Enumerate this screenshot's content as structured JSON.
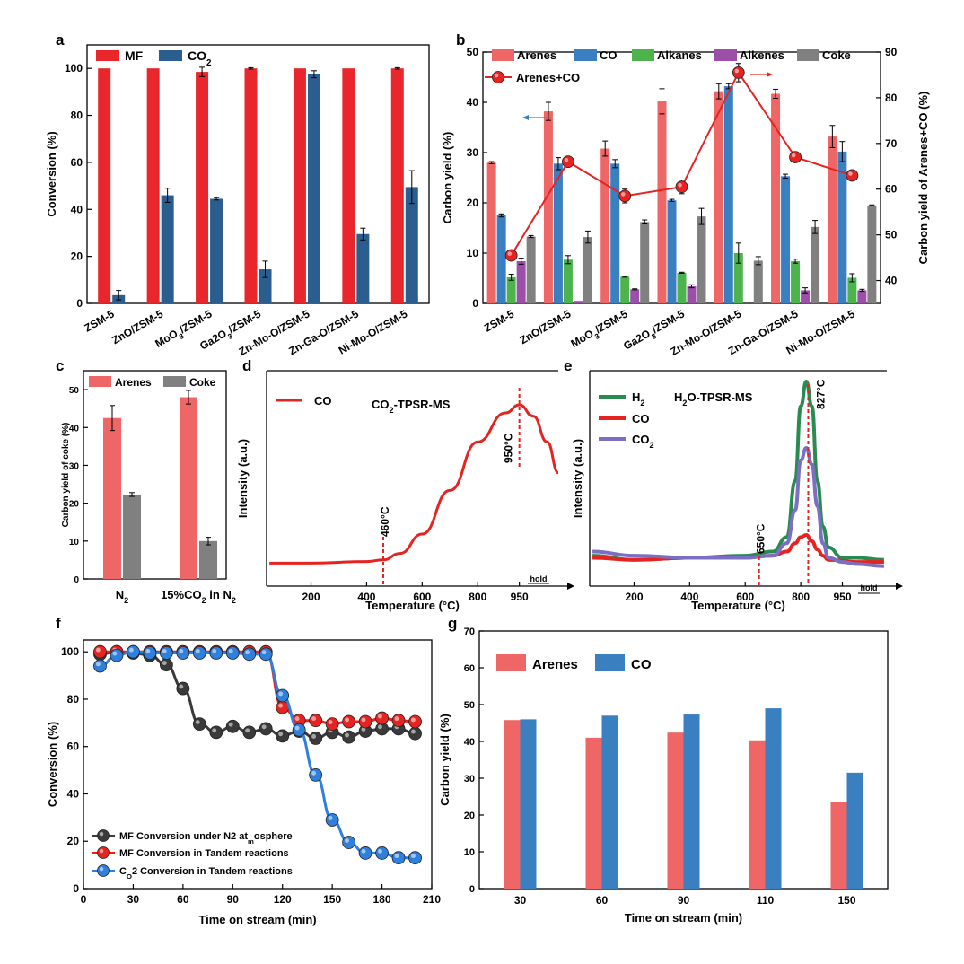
{
  "colors": {
    "mf_red": "#e8262b",
    "co2_blue": "#2b5d8e",
    "arenes": "#ee6666",
    "co": "#3a7fc0",
    "alkanes": "#4db34d",
    "alkenes": "#9b4fa8",
    "coke": "#808080",
    "series_red": "#e52421",
    "h2_green": "#2a8b51",
    "co2_purple": "#7b6fc3",
    "dark_gray": "#3a3a3a",
    "blue_line": "#2f7fdc"
  },
  "catalysts": [
    "ZSM-5",
    "ZnO/ZSM-5",
    "MoO3/ZSM-5",
    "Ga2O3/ZSM-5",
    "Zn-Mo-O/ZSM-5",
    "Zn-Ga-O/ZSM-5",
    "Ni-Mo-O/ZSM-5"
  ],
  "chart_data": [
    {
      "panel": "a",
      "type": "bar",
      "categories": [
        "ZSM-5",
        "ZnO/ZSM-5",
        "MoO3/ZSM-5",
        "Ga2O3/ZSM-5",
        "Zn-Mo-O/ZSM-5",
        "Zn-Ga-O/ZSM-5",
        "Ni-Mo-O/ZSM-5"
      ],
      "series": [
        {
          "name": "MF",
          "values": [
            100,
            100,
            98.5,
            100,
            100,
            100,
            100
          ],
          "errors": [
            0,
            0,
            2,
            0.3,
            0,
            0,
            0.3
          ]
        },
        {
          "name": "CO2",
          "values": [
            3.5,
            46,
            44.5,
            14.5,
            97.5,
            29.5,
            49.5
          ],
          "errors": [
            2,
            3,
            0.5,
            3.5,
            1.5,
            2.5,
            7
          ]
        }
      ],
      "ylabel": "Conversion (%)",
      "ylim": [
        0,
        110
      ],
      "yticks": [
        0,
        20,
        40,
        60,
        80,
        100
      ]
    },
    {
      "panel": "b",
      "type": "bar",
      "categories": [
        "ZSM-5",
        "ZnO/ZSM-5",
        "MoO3/ZSM-5",
        "Ga2O3/ZSM-5",
        "Zn-Mo-O/ZSM-5",
        "Zn-Ga-O/ZSM-5",
        "Ni-Mo-O/ZSM-5"
      ],
      "series": [
        {
          "name": "Arenes",
          "values": [
            28,
            38.2,
            30.8,
            40.2,
            42.2,
            41.7,
            33.2
          ],
          "errors": [
            0.2,
            1.8,
            1.5,
            2.5,
            1.5,
            0.9,
            2.2
          ]
        },
        {
          "name": "CO",
          "values": [
            17.5,
            27.8,
            27.8,
            20.5,
            43.2,
            25.3,
            30.2
          ],
          "errors": [
            0.3,
            1.2,
            0.8,
            0.2,
            0.5,
            0.4,
            2
          ]
        },
        {
          "name": "Alkanes",
          "values": [
            5.2,
            8.7,
            5.3,
            6.1,
            10,
            8.4,
            5.1
          ],
          "errors": [
            0.6,
            0.8,
            0.1,
            0.1,
            2,
            0.4,
            0.8
          ]
        },
        {
          "name": "Alkenes",
          "values": [
            8.4,
            0.5,
            2.8,
            3.4,
            0,
            2.6,
            2.6
          ],
          "errors": [
            0.6,
            0,
            0.1,
            0.3,
            0,
            0.5,
            0.2
          ]
        },
        {
          "name": "Coke",
          "values": [
            13.3,
            13.2,
            16.2,
            17.3,
            8.5,
            15.2,
            19.5
          ],
          "errors": [
            0.2,
            1.2,
            0.4,
            1.6,
            0.8,
            1.3,
            0.1
          ]
        }
      ],
      "line_series": {
        "name": "Arenes+CO",
        "axis": "right",
        "values": [
          45.5,
          66,
          58.5,
          60.5,
          85.5,
          67,
          63
        ],
        "errors": [
          0.5,
          0.5,
          1.5,
          1.5,
          2,
          0.5,
          0.5
        ]
      },
      "ylabel": "Carbon yield (%)",
      "ylim": [
        0,
        50
      ],
      "yticks": [
        0,
        10,
        20,
        30,
        40,
        50
      ],
      "ylabel_right": "Carbon yield of Arenes+CO (%)",
      "ylim_right": [
        35,
        90
      ],
      "yticks_right": [
        40,
        50,
        60,
        70,
        80,
        90
      ]
    },
    {
      "panel": "c",
      "type": "bar",
      "categories": [
        "N2",
        "15%CO2 in N2"
      ],
      "series": [
        {
          "name": "Arenes",
          "values": [
            42.5,
            48
          ],
          "errors": [
            3.3,
            1.8
          ]
        },
        {
          "name": "Coke",
          "values": [
            22.3,
            10
          ],
          "errors": [
            0.5,
            1
          ]
        }
      ],
      "ylabel": "Carbon yield of coke (%)",
      "ylim": [
        0,
        55
      ],
      "yticks": [
        0,
        10,
        20,
        30,
        40,
        50
      ]
    },
    {
      "panel": "d",
      "type": "line",
      "title": "CO2-TPSR-MS",
      "series": [
        {
          "name": "CO",
          "x": [
            50,
            200,
            400,
            460,
            520,
            600,
            700,
            800,
            900,
            950,
            1000,
            1050,
            1090
          ],
          "y": [
            0.02,
            0.02,
            0.03,
            0.04,
            0.08,
            0.2,
            0.47,
            0.77,
            0.95,
            1.0,
            0.93,
            0.77,
            0.58
          ]
        }
      ],
      "annotations": [
        "460°C",
        "950°C"
      ],
      "xlabel": "Temperature (°C)",
      "ylabel": "Intensity (a.u.)",
      "xticks": [
        200,
        400,
        600,
        800,
        950
      ],
      "xlim": [
        40,
        1090
      ],
      "extra_tick": "hold"
    },
    {
      "panel": "e",
      "type": "line",
      "title": "H2O-TPSR-MS",
      "series": [
        {
          "name": "H2",
          "x": [
            50,
            200,
            400,
            600,
            700,
            750,
            780,
            800,
            820,
            840,
            860,
            880,
            900,
            950,
            1000,
            1100
          ],
          "y": [
            0.06,
            0.04,
            0.05,
            0.06,
            0.08,
            0.15,
            0.42,
            0.78,
            0.9,
            0.78,
            0.42,
            0.2,
            0.1,
            0.05,
            0.05,
            0.04
          ]
        },
        {
          "name": "CO",
          "x": [
            50,
            200,
            400,
            600,
            700,
            750,
            780,
            800,
            820,
            840,
            860,
            880,
            900,
            1000,
            1100
          ],
          "y": [
            0.05,
            0.04,
            0.05,
            0.05,
            0.06,
            0.08,
            0.12,
            0.15,
            0.16,
            0.13,
            0.09,
            0.06,
            0.04,
            0.03,
            0.03
          ]
        },
        {
          "name": "CO2",
          "x": [
            50,
            200,
            400,
            600,
            700,
            750,
            780,
            800,
            820,
            840,
            860,
            880,
            900,
            950,
            1000,
            1100
          ],
          "y": [
            0.08,
            0.06,
            0.05,
            0.05,
            0.06,
            0.12,
            0.28,
            0.52,
            0.58,
            0.5,
            0.3,
            0.12,
            0.05,
            0.03,
            0.02,
            0.01
          ]
        }
      ],
      "annotations": [
        "650°C",
        "827°C"
      ],
      "xlabel": "Temperature (°C)",
      "ylabel": "Intensity (a.u.)",
      "xticks": [
        200,
        400,
        600,
        800,
        950
      ],
      "xlim": [
        40,
        1110
      ],
      "extra_tick": "hold"
    },
    {
      "panel": "f",
      "type": "line",
      "x": [
        10,
        20,
        30,
        40,
        50,
        60,
        70,
        80,
        90,
        100,
        110,
        120,
        130,
        140,
        150,
        160,
        170,
        180,
        190,
        200
      ],
      "series": [
        {
          "name": "MF Conversion under N2 atmosphere",
          "y": [
            99,
            100,
            99.5,
            98.5,
            94.5,
            84.5,
            69.5,
            66,
            68.5,
            66,
            67.5,
            64.5,
            66.5,
            63.5,
            66,
            64,
            66.5,
            67.5,
            67.5,
            65.5
          ]
        },
        {
          "name": "MF Conversion in Tandem reactions",
          "y": [
            100,
            100,
            100,
            100,
            100,
            100,
            100,
            100,
            100,
            100,
            100,
            76.5,
            71,
            71,
            69.5,
            70.5,
            70.5,
            72,
            71,
            70.5
          ]
        },
        {
          "name": "CO2 Conversion in Tandem reactions",
          "y": [
            94,
            98.5,
            100,
            99.5,
            99.5,
            99.5,
            99.5,
            99.5,
            99.5,
            99,
            99,
            81.5,
            67,
            48,
            29,
            19.5,
            15,
            15,
            13,
            13
          ]
        }
      ],
      "xlabel": "Time on stream (min)",
      "ylabel": "Conversion (%)",
      "xlim": [
        0,
        210
      ],
      "ylim": [
        0,
        105
      ],
      "xticks": [
        0,
        30,
        60,
        90,
        120,
        150,
        180,
        210
      ],
      "yticks": [
        0,
        20,
        40,
        60,
        80,
        100
      ]
    },
    {
      "panel": "g",
      "type": "bar",
      "categories": [
        "30",
        "60",
        "90",
        "110",
        "150"
      ],
      "series": [
        {
          "name": "Arenes",
          "values": [
            45.8,
            41,
            42.4,
            40.3,
            23.5
          ]
        },
        {
          "name": "CO",
          "values": [
            46,
            47,
            47.3,
            49,
            31.5
          ]
        }
      ],
      "xlabel": "Time on stream (min)",
      "ylabel": "Carbon yield (%)",
      "ylim": [
        0,
        70
      ],
      "yticks": [
        0,
        10,
        20,
        30,
        40,
        50,
        60,
        70
      ]
    }
  ]
}
